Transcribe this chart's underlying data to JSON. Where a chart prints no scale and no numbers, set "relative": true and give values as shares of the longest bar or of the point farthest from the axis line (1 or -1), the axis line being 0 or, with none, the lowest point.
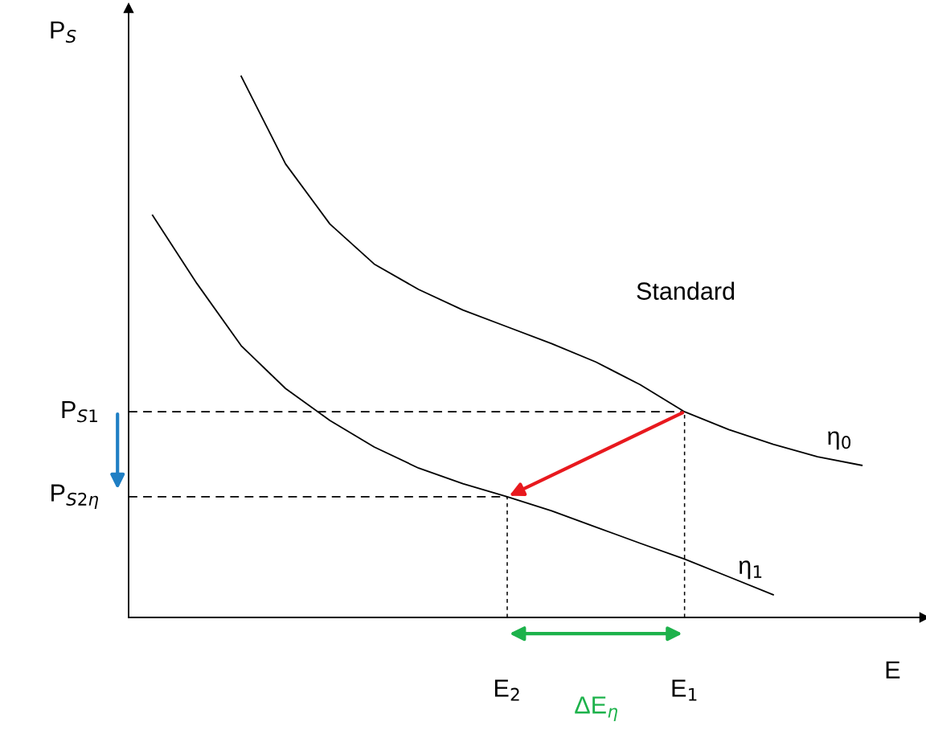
{
  "chart_data": {
    "type": "line",
    "relative": true,
    "xlabel": "E",
    "ylabel": "P$_{S}$",
    "legend": false,
    "grid": false,
    "marker": "none",
    "line_style": "solid",
    "categories": [
      null,
      null,
      null,
      null,
      null,
      null,
      null,
      null,
      "E$_{2}$",
      null,
      null,
      null,
      "E$_{1}$",
      null,
      null,
      null,
      null
    ],
    "series": [
      {
        "name": "η$_{0}$",
        "color": "#000000",
        "values": [
          null,
          null,
          1.0,
          0.838,
          0.727,
          0.653,
          0.606,
          0.568,
          0.537,
          0.506,
          0.472,
          0.43,
          0.38,
          0.347,
          0.32,
          0.297,
          0.281
        ]
      },
      {
        "name": "η$_{1}$",
        "color": "#000000",
        "values": [
          0.743,
          0.617,
          0.502,
          0.423,
          0.364,
          0.315,
          0.276,
          0.247,
          0.223,
          0.197,
          0.167,
          0.137,
          0.108,
          0.075,
          0.042,
          null,
          null
        ]
      }
    ],
    "ref_lines": [
      {
        "axis": "y",
        "value": 0.38,
        "label": "P$_{S1}$",
        "color": "#000000",
        "line_style": "dashed"
      },
      {
        "axis": "y",
        "value": 0.223,
        "label": "P$_{S2η}$",
        "color": "#000000",
        "line_style": "dashed"
      },
      {
        "axis": "x",
        "value": "E$_{1}$",
        "color": "#000000",
        "line_style": "dotted"
      },
      {
        "axis": "x",
        "value": "E$_{2}$",
        "color": "#000000",
        "line_style": "dotted"
      }
    ],
    "annotations": [
      "Standard",
      "ΔE$_{η}$"
    ]
  }
}
